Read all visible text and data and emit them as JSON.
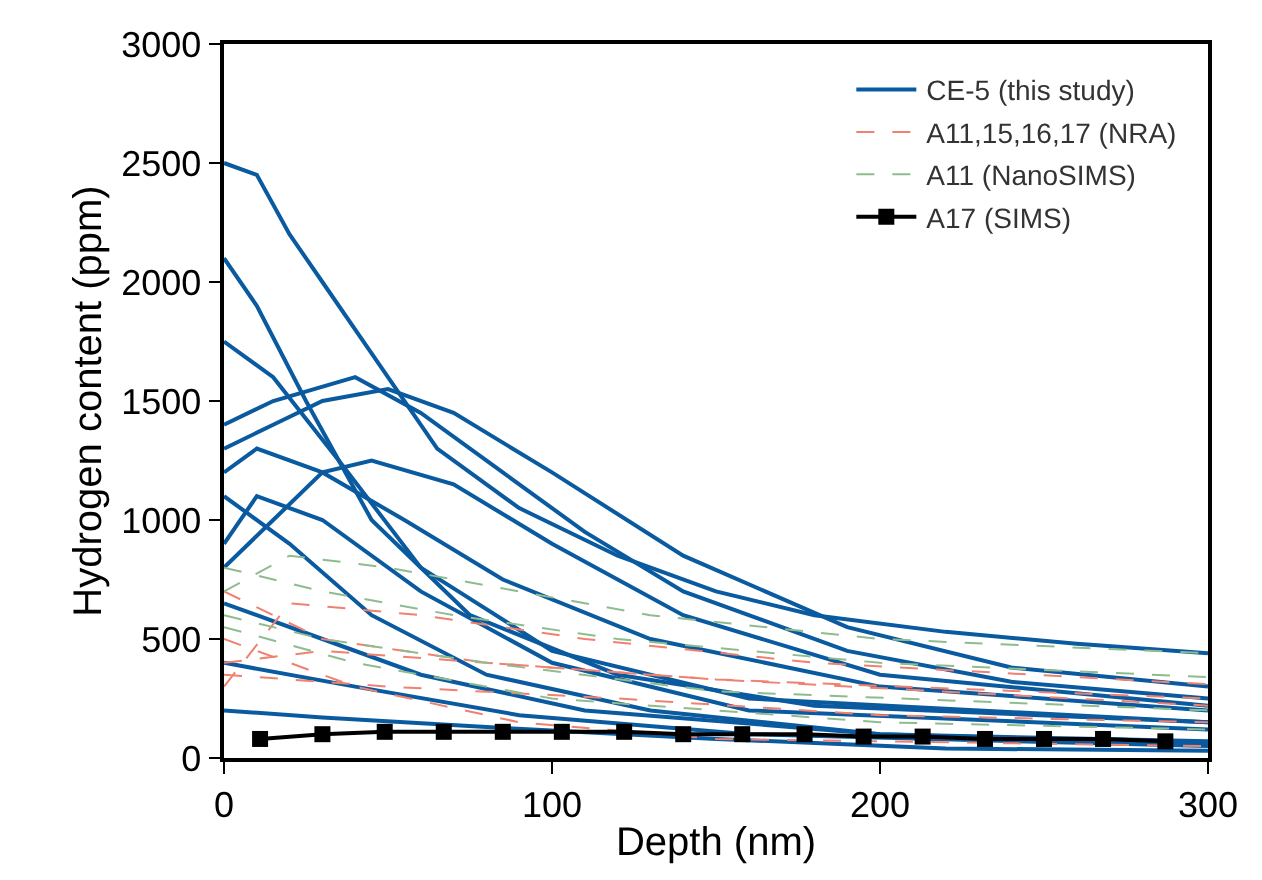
{
  "chart_data": {
    "type": "line",
    "xlabel": "Depth (nm)",
    "ylabel": "Hydrogen content (ppm)",
    "xlim": [
      0,
      300
    ],
    "xticks": [
      0,
      100,
      200,
      300
    ],
    "ylim": [
      0,
      3000
    ],
    "yticks": [
      0,
      500,
      1000,
      1500,
      2000,
      2500,
      3000
    ],
    "legend": "top right",
    "marker": "none",
    "series": [
      {
        "name": "CE-5 (this study)",
        "color": "#0a5aa0",
        "line_style": "solid",
        "x": [
          0,
          10,
          20,
          30,
          45,
          65,
          90,
          120,
          150,
          180,
          220,
          260,
          300
        ],
        "values": [
          2500,
          2450,
          2200,
          2000,
          1700,
          1300,
          1050,
          850,
          700,
          600,
          530,
          480,
          440
        ]
      },
      {
        "color": "#0a5aa0",
        "line_style": "solid",
        "x": [
          0,
          10,
          25,
          45,
          75,
          120,
          180,
          300
        ],
        "values": [
          2100,
          1900,
          1500,
          1000,
          600,
          350,
          220,
          150
        ]
      },
      {
        "color": "#0a5aa0",
        "line_style": "solid",
        "x": [
          0,
          15,
          35,
          60,
          100,
          160,
          300
        ],
        "values": [
          1750,
          1600,
          1250,
          800,
          450,
          250,
          150
        ]
      },
      {
        "color": "#0a5aa0",
        "line_style": "solid",
        "x": [
          0,
          15,
          40,
          60,
          85,
          110,
          140,
          190,
          240,
          300
        ],
        "values": [
          1400,
          1500,
          1600,
          1450,
          1200,
          950,
          700,
          450,
          320,
          250
        ]
      },
      {
        "color": "#0a5aa0",
        "line_style": "solid",
        "x": [
          0,
          15,
          30,
          50,
          70,
          100,
          140,
          190,
          240,
          300
        ],
        "values": [
          1300,
          1400,
          1500,
          1550,
          1450,
          1200,
          850,
          550,
          380,
          300
        ]
      },
      {
        "color": "#0a5aa0",
        "line_style": "solid",
        "x": [
          0,
          10,
          30,
          55,
          85,
          130,
          200,
          300
        ],
        "values": [
          1200,
          1300,
          1200,
          1000,
          750,
          500,
          300,
          200
        ]
      },
      {
        "color": "#0a5aa0",
        "line_style": "solid",
        "x": [
          0,
          15,
          30,
          45,
          70,
          100,
          140,
          200,
          300
        ],
        "values": [
          800,
          1000,
          1200,
          1250,
          1150,
          900,
          600,
          350,
          220
        ]
      },
      {
        "color": "#0a5aa0",
        "line_style": "solid",
        "x": [
          0,
          10,
          30,
          60,
          100,
          160,
          300
        ],
        "values": [
          900,
          1100,
          1000,
          700,
          400,
          200,
          120
        ]
      },
      {
        "color": "#0a5aa0",
        "line_style": "solid",
        "x": [
          0,
          20,
          45,
          80,
          130,
          200,
          300
        ],
        "values": [
          1100,
          900,
          600,
          350,
          200,
          100,
          70
        ]
      },
      {
        "color": "#0a5aa0",
        "line_style": "solid",
        "x": [
          0,
          30,
          60,
          110,
          200,
          300
        ],
        "values": [
          650,
          500,
          350,
          200,
          100,
          60
        ]
      },
      {
        "color": "#0a5aa0",
        "line_style": "solid",
        "x": [
          0,
          40,
          90,
          160,
          300
        ],
        "values": [
          400,
          300,
          180,
          100,
          50
        ]
      },
      {
        "color": "#0a5aa0",
        "line_style": "solid",
        "x": [
          0,
          30,
          80,
          150,
          220,
          300
        ],
        "values": [
          200,
          170,
          130,
          80,
          40,
          30
        ]
      },
      {
        "name": "A11,15,16,17 (NRA)",
        "color": "#f08070",
        "line_style": "dashed",
        "x": [
          0,
          20,
          60,
          110,
          180,
          300
        ],
        "values": [
          300,
          650,
          600,
          500,
          400,
          310
        ]
      },
      {
        "color": "#f08070",
        "line_style": "dashed",
        "x": [
          0,
          30,
          80,
          150,
          300
        ],
        "values": [
          700,
          500,
          400,
          330,
          250
        ]
      },
      {
        "color": "#f08070",
        "line_style": "dashed",
        "x": [
          0,
          30,
          80,
          150,
          300
        ],
        "values": [
          400,
          450,
          400,
          330,
          220
        ]
      },
      {
        "color": "#f08070",
        "line_style": "dashed",
        "x": [
          0,
          50,
          120,
          200,
          300
        ],
        "values": [
          350,
          300,
          250,
          180,
          150
        ]
      },
      {
        "color": "#f08070",
        "line_style": "dashed",
        "x": [
          0,
          40,
          90,
          150,
          300
        ],
        "values": [
          500,
          300,
          150,
          80,
          50
        ]
      },
      {
        "name": "A11 (NanoSIMS)",
        "color": "#8fbc8f",
        "line_style": "dashed",
        "x": [
          0,
          20,
          50,
          90,
          130,
          200,
          300
        ],
        "values": [
          700,
          850,
          800,
          700,
          600,
          500,
          440
        ]
      },
      {
        "color": "#8fbc8f",
        "line_style": "dashed",
        "x": [
          0,
          30,
          70,
          120,
          200,
          300
        ],
        "values": [
          800,
          700,
          600,
          500,
          400,
          340
        ]
      },
      {
        "color": "#8fbc8f",
        "line_style": "dashed",
        "x": [
          0,
          30,
          80,
          150,
          300
        ],
        "values": [
          600,
          500,
          400,
          280,
          200
        ]
      },
      {
        "color": "#8fbc8f",
        "line_style": "dashed",
        "x": [
          0,
          40,
          100,
          200,
          300
        ],
        "values": [
          550,
          400,
          250,
          150,
          120
        ]
      },
      {
        "name": "A17 (SIMS)",
        "color": "#000000",
        "line_style": "solid",
        "marker": "square",
        "x": [
          11,
          30,
          49,
          67,
          85,
          103,
          122,
          140,
          158,
          177,
          195,
          213,
          232,
          250,
          268,
          287
        ],
        "values": [
          80,
          100,
          110,
          110,
          110,
          110,
          110,
          100,
          100,
          100,
          90,
          90,
          80,
          80,
          80,
          70
        ]
      }
    ]
  }
}
